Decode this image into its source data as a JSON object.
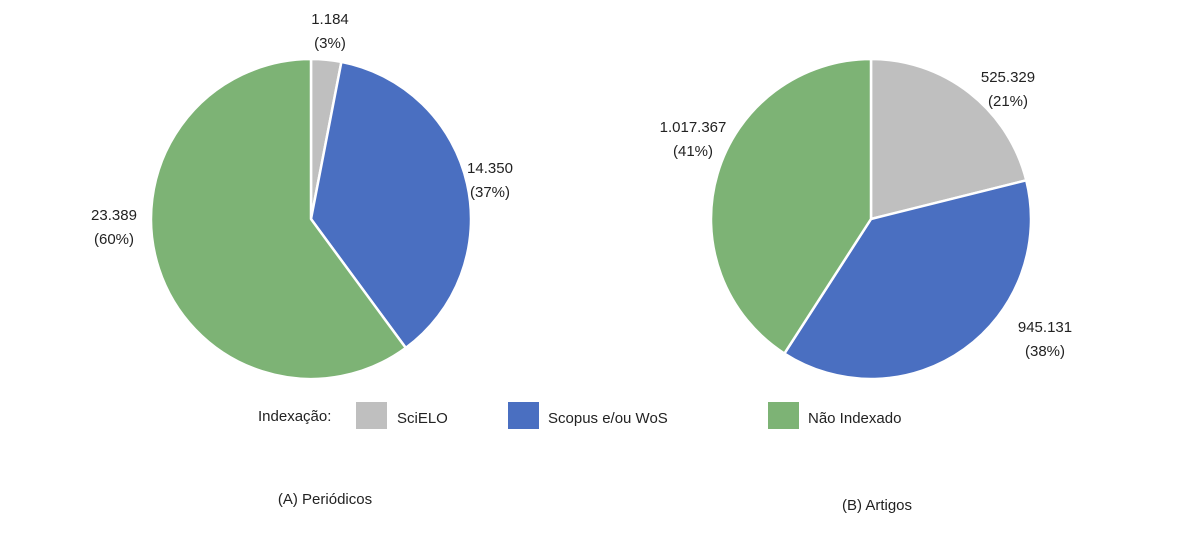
{
  "legend": {
    "title": "Indexação:",
    "items": [
      {
        "label": "SciELO",
        "color": "#BFBFBF"
      },
      {
        "label": "Scopus e/ou WoS",
        "color": "#4A6FC1"
      },
      {
        "label": "Não Indexado",
        "color": "#7DB375"
      }
    ]
  },
  "chart_data": [
    {
      "type": "pie",
      "title": "(A) Periódicos",
      "slices": [
        {
          "name": "SciELO",
          "value": 1184,
          "value_label": "1.184",
          "pct_label": "(3%)",
          "color": "#BFBFBF"
        },
        {
          "name": "Scopus e/ou WoS",
          "value": 14350,
          "value_label": "14.350",
          "pct_label": "(37%)",
          "color": "#4A6FC1"
        },
        {
          "name": "Não Indexado",
          "value": 23389,
          "value_label": "23.389",
          "pct_label": "(60%)",
          "color": "#7DB375"
        }
      ]
    },
    {
      "type": "pie",
      "title": "(B) Artigos",
      "slices": [
        {
          "name": "SciELO",
          "value": 525329,
          "value_label": "525.329",
          "pct_label": "(21%)",
          "color": "#BFBFBF"
        },
        {
          "name": "Scopus e/ou WoS",
          "value": 945131,
          "value_label": "945.131",
          "pct_label": "(38%)",
          "color": "#4A6FC1"
        },
        {
          "name": "Não Indexado",
          "value": 1017367,
          "value_label": "1.017.367",
          "pct_label": "(41%)",
          "color": "#7DB375"
        }
      ]
    }
  ]
}
